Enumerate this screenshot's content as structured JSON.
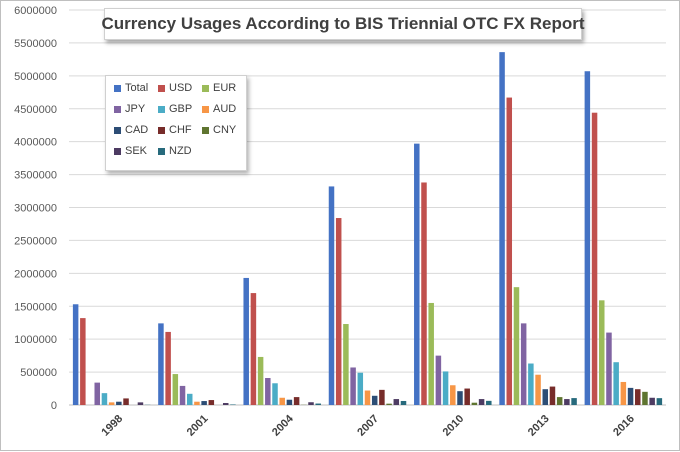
{
  "chart_data": {
    "type": "bar",
    "title": "Currency Usages According to BIS Triennial OTC FX Report",
    "xlabel": "",
    "ylabel": "",
    "ylim": [
      0,
      6000000
    ],
    "yticks": [
      0,
      500000,
      1000000,
      1500000,
      2000000,
      2500000,
      3000000,
      3500000,
      4000000,
      4500000,
      5000000,
      5500000,
      6000000
    ],
    "ytick_labels": [
      "0",
      "500000",
      "1000000",
      "1500000",
      "2000000",
      "2500000",
      "3000000",
      "3500000",
      "4000000",
      "4500000",
      "5000000",
      "5500000",
      "6000000"
    ],
    "grid": true,
    "legend_position": "top-left",
    "categories": [
      "1998",
      "2001",
      "2004",
      "2007",
      "2010",
      "2013",
      "2016"
    ],
    "series": [
      {
        "name": "Total",
        "color": "#4472c4",
        "values": [
          1530000,
          1240000,
          1930000,
          3320000,
          3970000,
          5360000,
          5070000
        ]
      },
      {
        "name": "USD",
        "color": "#c0504d",
        "values": [
          1320000,
          1110000,
          1700000,
          2840000,
          3380000,
          4670000,
          4440000
        ]
      },
      {
        "name": "EUR",
        "color": "#9bbb59",
        "values": [
          0,
          470000,
          730000,
          1230000,
          1550000,
          1790000,
          1590000
        ]
      },
      {
        "name": "JPY",
        "color": "#8064a2",
        "values": [
          340000,
          290000,
          410000,
          570000,
          750000,
          1240000,
          1100000
        ]
      },
      {
        "name": "GBP",
        "color": "#4bacc6",
        "values": [
          180000,
          170000,
          330000,
          490000,
          510000,
          630000,
          650000
        ]
      },
      {
        "name": "AUD",
        "color": "#f79646",
        "values": [
          40000,
          50000,
          110000,
          220000,
          300000,
          460000,
          350000
        ]
      },
      {
        "name": "CAD",
        "color": "#2c4d75",
        "values": [
          50000,
          60000,
          80000,
          140000,
          210000,
          240000,
          260000
        ]
      },
      {
        "name": "CHF",
        "color": "#772c2a",
        "values": [
          100000,
          75000,
          120000,
          230000,
          250000,
          280000,
          240000
        ]
      },
      {
        "name": "CNY",
        "color": "#5f7530",
        "values": [
          0,
          0,
          3000,
          20000,
          35000,
          120000,
          200000
        ]
      },
      {
        "name": "SEK",
        "color": "#4d3b62",
        "values": [
          40000,
          30000,
          42000,
          90000,
          90000,
          90000,
          110000
        ]
      },
      {
        "name": "NZD",
        "color": "#276a7c",
        "values": [
          3000,
          8000,
          22000,
          61000,
          63000,
          105000,
          104000
        ]
      }
    ]
  }
}
